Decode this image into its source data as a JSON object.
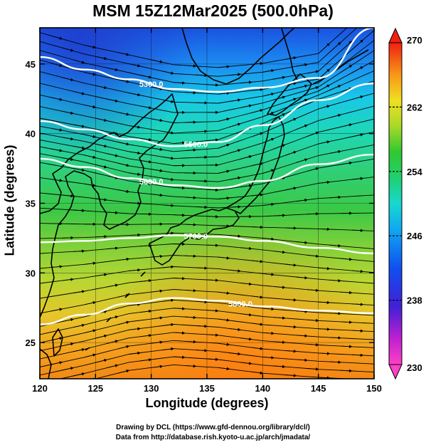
{
  "title": "MSM 15Z12Mar2025 (500.0hPa)",
  "xlabel": "Longitude (degrees)",
  "ylabel": "Latitude  (degrees)",
  "footer": {
    "line1": "Drawing by DCL (https://www.gfd-dennou.org/library/dcl/)",
    "line2": "Data from http://database.rish.kyoto-u.ac.jp/arch/jmadata/"
  },
  "chart_data": {
    "type": "heatmap",
    "xlim": [
      120,
      150
    ],
    "ylim": [
      22.4,
      47.6
    ],
    "x_ticks": [
      "120",
      "125",
      "130",
      "135",
      "140",
      "145",
      "150"
    ],
    "y_ticks": [
      "25",
      "30",
      "35",
      "40",
      "45"
    ],
    "colorbar": {
      "range": [
        230,
        270
      ],
      "tick_labels": [
        "270",
        "262",
        "254",
        "246",
        "238",
        "230"
      ]
    },
    "contours": [
      {
        "label": "5300.0",
        "lat": [
          45.5,
          44.6,
          43.9,
          43.2,
          43.0,
          43.3,
          44.0,
          47.6
        ]
      },
      {
        "label": "5500.0",
        "lat": [
          40.9,
          40.3,
          39.6,
          39.1,
          39.4,
          40.6,
          42.4,
          43.6
        ]
      },
      {
        "label": "5600.0",
        "lat": [
          38.2,
          37.6,
          36.8,
          36.3,
          36.1,
          36.6,
          37.8,
          38.5
        ]
      },
      {
        "label": "5700.0",
        "lat": [
          32.2,
          32.3,
          32.5,
          32.7,
          32.6,
          32.3,
          31.8,
          31.4
        ]
      },
      {
        "label": "5800.0",
        "lat": [
          26.3,
          27.0,
          27.8,
          28.2,
          28.0,
          27.6,
          27.3,
          27.1
        ]
      }
    ],
    "contour_lons": [
      120,
      124,
      128,
      132,
      136,
      140,
      145,
      150
    ],
    "flow": "westerly streamlines"
  }
}
